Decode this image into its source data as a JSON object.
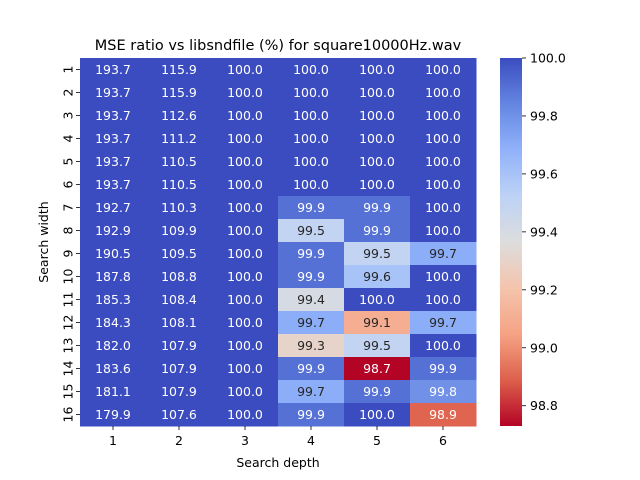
{
  "chart_data": {
    "type": "heatmap",
    "title": "MSE ratio vs libsndfile (%) for square10000Hz.wav",
    "xlabel": "Search depth",
    "ylabel": "Search width",
    "x_categories": [
      "1",
      "2",
      "3",
      "4",
      "5",
      "6"
    ],
    "y_categories": [
      "1",
      "2",
      "3",
      "4",
      "5",
      "6",
      "7",
      "8",
      "9",
      "10",
      "11",
      "12",
      "13",
      "14",
      "15",
      "16"
    ],
    "values": [
      [
        193.7,
        115.9,
        100.0,
        100.0,
        100.0,
        100.0
      ],
      [
        193.7,
        115.9,
        100.0,
        100.0,
        100.0,
        100.0
      ],
      [
        193.7,
        112.6,
        100.0,
        100.0,
        100.0,
        100.0
      ],
      [
        193.7,
        111.2,
        100.0,
        100.0,
        100.0,
        100.0
      ],
      [
        193.7,
        110.5,
        100.0,
        100.0,
        100.0,
        100.0
      ],
      [
        193.7,
        110.5,
        100.0,
        100.0,
        100.0,
        100.0
      ],
      [
        192.7,
        110.3,
        100.0,
        99.9,
        99.9,
        100.0
      ],
      [
        192.9,
        109.9,
        100.0,
        99.5,
        99.9,
        100.0
      ],
      [
        190.5,
        109.5,
        100.0,
        99.9,
        99.5,
        99.7
      ],
      [
        187.8,
        108.8,
        100.0,
        99.9,
        99.6,
        100.0
      ],
      [
        185.3,
        108.4,
        100.0,
        99.4,
        100.0,
        100.0
      ],
      [
        184.3,
        108.1,
        100.0,
        99.7,
        99.1,
        99.7
      ],
      [
        182.0,
        107.9,
        100.0,
        99.3,
        99.5,
        100.0
      ],
      [
        183.6,
        107.9,
        100.0,
        99.9,
        98.7,
        99.9
      ],
      [
        181.1,
        107.9,
        100.0,
        99.7,
        99.9,
        99.8
      ],
      [
        179.9,
        107.6,
        100.0,
        99.9,
        100.0,
        98.9
      ]
    ],
    "labels": [
      [
        "193.7",
        "115.9",
        "100.0",
        "100.0",
        "100.0",
        "100.0"
      ],
      [
        "193.7",
        "115.9",
        "100.0",
        "100.0",
        "100.0",
        "100.0"
      ],
      [
        "193.7",
        "112.6",
        "100.0",
        "100.0",
        "100.0",
        "100.0"
      ],
      [
        "193.7",
        "111.2",
        "100.0",
        "100.0",
        "100.0",
        "100.0"
      ],
      [
        "193.7",
        "110.5",
        "100.0",
        "100.0",
        "100.0",
        "100.0"
      ],
      [
        "193.7",
        "110.5",
        "100.0",
        "100.0",
        "100.0",
        "100.0"
      ],
      [
        "192.7",
        "110.3",
        "100.0",
        "99.9",
        "99.9",
        "100.0"
      ],
      [
        "192.9",
        "109.9",
        "100.0",
        "99.5",
        "99.9",
        "100.0"
      ],
      [
        "190.5",
        "109.5",
        "100.0",
        "99.9",
        "99.5",
        "99.7"
      ],
      [
        "187.8",
        "108.8",
        "100.0",
        "99.9",
        "99.6",
        "100.0"
      ],
      [
        "185.3",
        "108.4",
        "100.0",
        "99.4",
        "100.0",
        "100.0"
      ],
      [
        "184.3",
        "108.1",
        "100.0",
        "99.7",
        "99.1",
        "99.7"
      ],
      [
        "182.0",
        "107.9",
        "100.0",
        "99.3",
        "99.5",
        "100.0"
      ],
      [
        "183.6",
        "107.9",
        "100.0",
        "99.9",
        "98.7",
        "99.9"
      ],
      [
        "181.1",
        "107.9",
        "100.0",
        "99.7",
        "99.9",
        "99.8"
      ],
      [
        "179.9",
        "107.6",
        "100.0",
        "99.9",
        "100.0",
        "98.9"
      ]
    ],
    "colorbar": {
      "min": 98.73,
      "max": 100.0,
      "ticks": [
        98.8,
        99.0,
        99.2,
        99.4,
        99.6,
        99.8,
        100.0
      ],
      "tick_labels": [
        "98.8",
        "99.0",
        "99.2",
        "99.4",
        "99.6",
        "99.8",
        "100.0"
      ],
      "colormap": "coolwarm_r"
    }
  }
}
